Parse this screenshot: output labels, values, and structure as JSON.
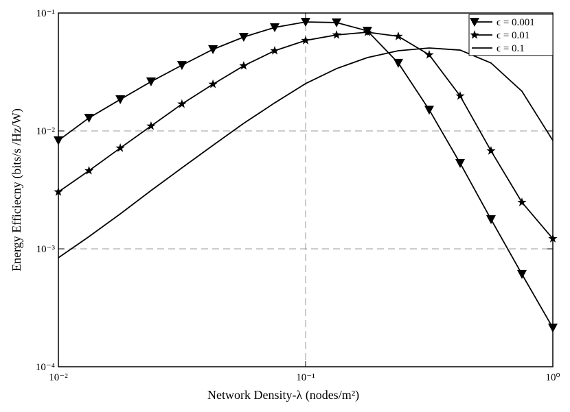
{
  "chart_data": {
    "type": "line",
    "x_label": "Network Density-λ (nodes/m²)",
    "y_label": "Energy Efficiecny (bits/s /Hz/W)",
    "x": [
      0.01,
      0.0133,
      0.0178,
      0.0237,
      0.0316,
      0.0422,
      0.0562,
      0.075,
      0.1,
      0.1334,
      0.1778,
      0.2371,
      0.3162,
      0.4217,
      0.5623,
      0.7499,
      1
    ],
    "series": [
      {
        "name": "ϵ = 0.001",
        "color": "#000000",
        "marker": "triangle-down",
        "values": [
          0.0083,
          0.0129,
          0.0185,
          0.0262,
          0.0361,
          0.0492,
          0.0626,
          0.0755,
          0.084,
          0.083,
          0.0706,
          0.0377,
          0.0151,
          0.00533,
          0.00178,
          0.00061,
          0.000214
        ]
      },
      {
        "name": "ϵ = 0.01",
        "color": "#000000",
        "marker": "star",
        "values": [
          0.00304,
          0.0046,
          0.00716,
          0.011,
          0.0169,
          0.0249,
          0.0357,
          0.0479,
          0.0585,
          0.0652,
          0.0687,
          0.0634,
          0.0442,
          0.0198,
          0.00678,
          0.00248,
          0.00122
        ]
      },
      {
        "name": "ϵ = 0.1",
        "color": "#000000",
        "marker": "none",
        "values": [
          0.00084,
          0.00127,
          0.00198,
          0.00312,
          0.00486,
          0.00755,
          0.0116,
          0.0173,
          0.0252,
          0.0338,
          0.0419,
          0.0479,
          0.0505,
          0.0485,
          0.0377,
          0.0217,
          0.0083
        ]
      }
    ],
    "xlim": [
      0.01,
      1
    ],
    "ylim": [
      0.0001,
      0.1
    ],
    "xticks": [
      {
        "value": 0.01,
        "label": "10⁻²"
      },
      {
        "value": 0.1,
        "label": "10⁻¹"
      },
      {
        "value": 1,
        "label": "10⁰"
      }
    ],
    "yticks": [
      {
        "value": 0.0001,
        "label": "10⁻⁴"
      },
      {
        "value": 0.001,
        "label": "10⁻³"
      },
      {
        "value": 0.01,
        "label": "10⁻²"
      },
      {
        "value": 0.1,
        "label": "10⁻¹"
      }
    ],
    "log_x": true,
    "log_y": true,
    "grid": true,
    "legend": "upper right"
  }
}
